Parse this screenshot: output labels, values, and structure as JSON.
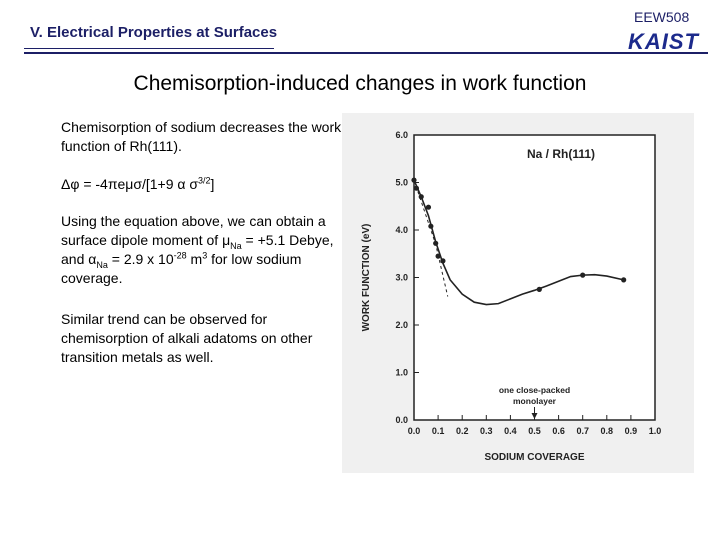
{
  "header": {
    "title": "V. Electrical Properties at Surfaces",
    "course_code": "EEW508",
    "logo_text": "KAIST"
  },
  "slide_title": "Chemisorption-induced changes in work function",
  "body": {
    "p1": "Chemisorption of sodium decreases the work function of Rh(111).",
    "eq": {
      "dphi": "Δφ = -4πeμσ/[1+9 α σ",
      "exp": "3/2",
      "close": "]"
    },
    "p2": {
      "t1": "Using the equation above, we can obtain a surface dipole moment of μ",
      "s1": "Na",
      "t2": " = +5.1 Debye, and α",
      "s2": "Na",
      "t3": " = 2.9 x 10",
      "e1": "-28",
      "t4": " m",
      "e2": "3",
      "t5": " for low sodium coverage."
    },
    "p3": "Similar trend can be observed for chemisorption of alkali adatoms on other transition metals as well."
  },
  "colors": {
    "header_navy": "#1c1f66",
    "logo_blue": "#1c2a8c",
    "figure_bg": "#f0f0f0"
  },
  "chart_data": {
    "type": "line",
    "legend_label": "Na / Rh(111)",
    "xlabel": "SODIUM COVERAGE",
    "ylabel": "WORK FUNCTION (eV)",
    "xlim": [
      0.0,
      1.0
    ],
    "ylim": [
      0.0,
      6.0
    ],
    "x_ticks": [
      "0.0",
      "0.1",
      "0.2",
      "0.3",
      "0.4",
      "0.5",
      "0.6",
      "0.7",
      "0.8",
      "0.9",
      "1.0"
    ],
    "y_ticks": [
      "0.0",
      "1.0",
      "2.0",
      "3.0",
      "4.0",
      "5.0",
      "6.0"
    ],
    "annotation": {
      "text_line1": "one close-packed",
      "text_line2": "monolayer",
      "x": 0.5
    },
    "series": [
      {
        "points": [
          [
            0.0,
            5.05
          ],
          [
            0.01,
            4.88
          ],
          [
            0.03,
            4.7
          ],
          [
            0.06,
            4.48
          ],
          [
            0.07,
            4.08
          ],
          [
            0.09,
            3.72
          ],
          [
            0.1,
            3.45
          ],
          [
            0.12,
            3.35
          ],
          [
            0.52,
            2.75
          ],
          [
            0.7,
            3.05
          ],
          [
            0.87,
            2.95
          ]
        ],
        "curve": [
          [
            0.0,
            5.05
          ],
          [
            0.03,
            4.7
          ],
          [
            0.06,
            4.3
          ],
          [
            0.09,
            3.75
          ],
          [
            0.12,
            3.3
          ],
          [
            0.15,
            2.95
          ],
          [
            0.2,
            2.65
          ],
          [
            0.25,
            2.48
          ],
          [
            0.3,
            2.43
          ],
          [
            0.35,
            2.45
          ],
          [
            0.4,
            2.55
          ],
          [
            0.45,
            2.65
          ],
          [
            0.5,
            2.73
          ],
          [
            0.55,
            2.82
          ],
          [
            0.6,
            2.92
          ],
          [
            0.65,
            3.02
          ],
          [
            0.7,
            3.05
          ],
          [
            0.75,
            3.06
          ],
          [
            0.8,
            3.03
          ],
          [
            0.87,
            2.95
          ]
        ],
        "extrapolation": [
          [
            0.0,
            5.05
          ],
          [
            0.09,
            3.7
          ],
          [
            0.14,
            2.6
          ]
        ]
      }
    ]
  }
}
